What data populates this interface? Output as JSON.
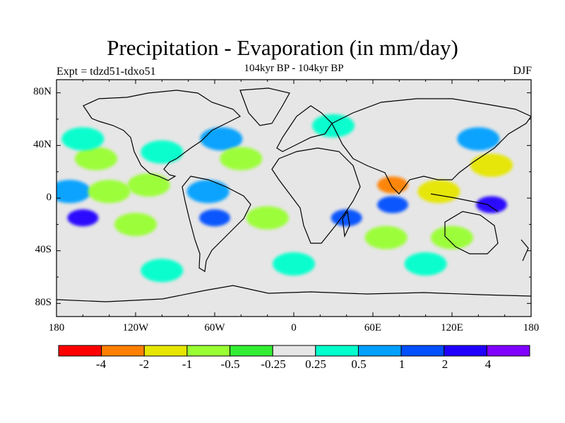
{
  "title": "Precipitation - Evaporation (in mm/day)",
  "experiment": "Expt = tdzd51-tdxo51",
  "period": "104kyr BP - 104kyr BP",
  "season": "DJF",
  "axes": {
    "y_ticks": [
      "80N",
      "40N",
      "0",
      "40S",
      "80S"
    ],
    "x_ticks": [
      "180",
      "120W",
      "60W",
      "0",
      "60E",
      "120E",
      "180"
    ]
  },
  "colorbar": {
    "colors": [
      "#ff0000",
      "#ff8000",
      "#e6e600",
      "#99ff33",
      "#33ee33",
      "#e6e6e6",
      "#00ffcc",
      "#00a0ff",
      "#0050ff",
      "#2000ff",
      "#8000ff"
    ],
    "labels": [
      "-4",
      "-2",
      "-1",
      "-0.5",
      "-0.25",
      "0.25",
      "0.5",
      "1",
      "2",
      "4"
    ]
  },
  "map_data": {
    "fields": [
      {
        "lon": -160,
        "lat": -15,
        "value": 4
      },
      {
        "lon": -170,
        "lat": 5,
        "value": 1
      },
      {
        "lon": -140,
        "lat": 5,
        "value": -0.5
      },
      {
        "lon": -110,
        "lat": 10,
        "value": -0.5
      },
      {
        "lon": -120,
        "lat": -20,
        "value": -0.5
      },
      {
        "lon": -150,
        "lat": 30,
        "value": -0.5
      },
      {
        "lon": -100,
        "lat": 35,
        "value": 0.5
      },
      {
        "lon": -160,
        "lat": 45,
        "value": 0.5
      },
      {
        "lon": -55,
        "lat": 45,
        "value": 1
      },
      {
        "lon": -40,
        "lat": 30,
        "value": -0.5
      },
      {
        "lon": -20,
        "lat": -15,
        "value": -0.5
      },
      {
        "lon": -60,
        "lat": -15,
        "value": 2
      },
      {
        "lon": -65,
        "lat": 5,
        "value": 1
      },
      {
        "lon": 10,
        "lat": 20,
        "value": 0
      },
      {
        "lon": 75,
        "lat": -5,
        "value": 2
      },
      {
        "lon": 75,
        "lat": 10,
        "value": -2
      },
      {
        "lon": 110,
        "lat": 5,
        "value": -1
      },
      {
        "lon": 150,
        "lat": 25,
        "value": -1
      },
      {
        "lon": 140,
        "lat": 45,
        "value": 1
      },
      {
        "lon": 150,
        "lat": -5,
        "value": 4
      },
      {
        "lon": 40,
        "lat": -15,
        "value": 2
      },
      {
        "lon": 70,
        "lat": -30,
        "value": -0.5
      },
      {
        "lon": 120,
        "lat": -30,
        "value": -0.5
      },
      {
        "lon": 0,
        "lat": -50,
        "value": 0.5
      },
      {
        "lon": 100,
        "lat": -50,
        "value": 0.5
      },
      {
        "lon": -100,
        "lat": -55,
        "value": 0.5
      },
      {
        "lon": 30,
        "lat": 55,
        "value": 0.5
      },
      {
        "lon": 90,
        "lat": 60,
        "value": 0
      }
    ]
  }
}
